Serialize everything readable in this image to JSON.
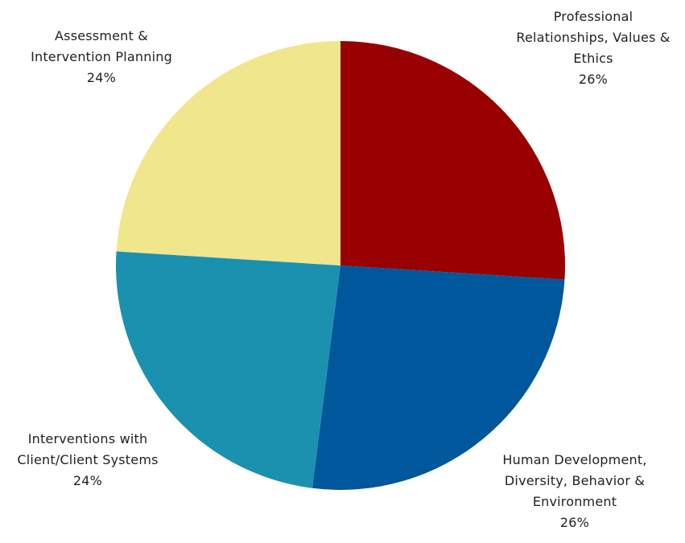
{
  "chart_data": {
    "type": "pie",
    "slices": [
      {
        "label_lines": [
          "Professional",
          "Relationships, Values &",
          "Ethics"
        ],
        "value": 26,
        "value_label": "26%",
        "color": "#990000"
      },
      {
        "label_lines": [
          "Human Development,",
          "Diversity, Behavior &",
          "Environment"
        ],
        "value": 26,
        "value_label": "26%",
        "color": "#00579B"
      },
      {
        "label_lines": [
          "Interventions with",
          "Client/Client Systems"
        ],
        "value": 24,
        "value_label": "24%",
        "color": "#1A91AE"
      },
      {
        "label_lines": [
          "Assessment &",
          "Intervention Planning"
        ],
        "value": 24,
        "value_label": "24%",
        "color": "#F0E68C"
      }
    ]
  }
}
